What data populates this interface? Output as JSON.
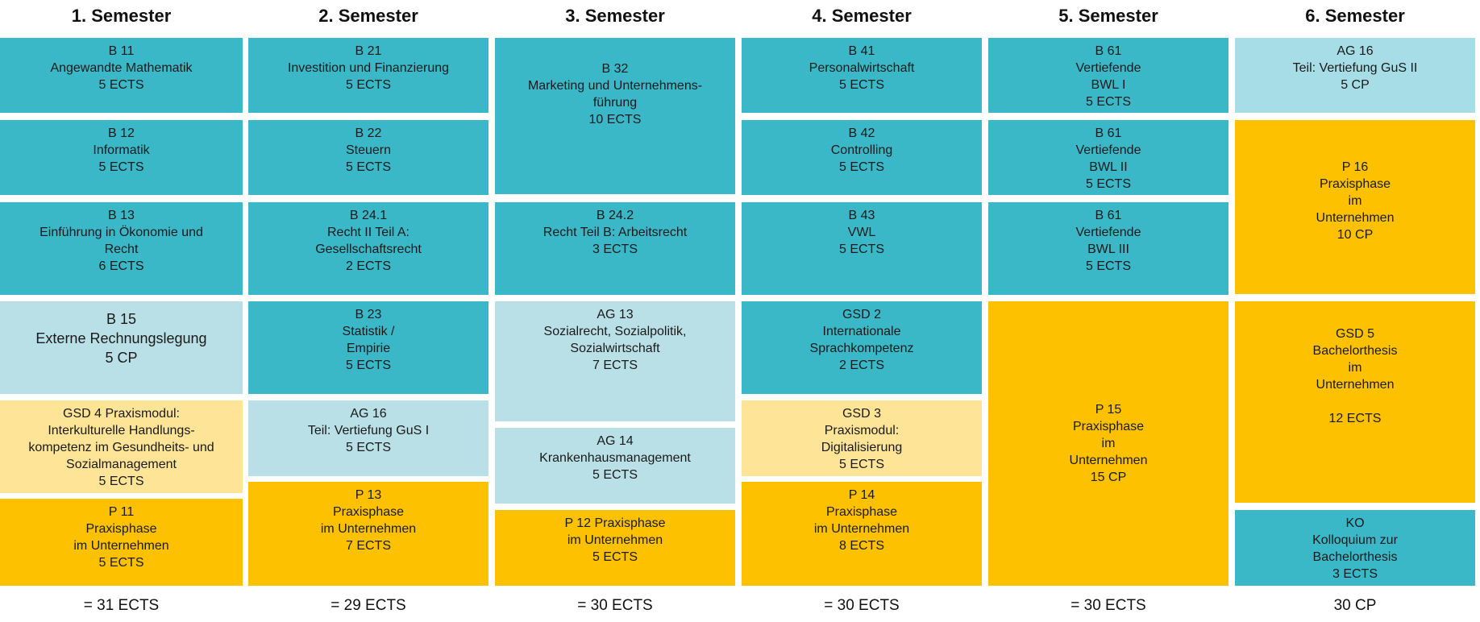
{
  "semesters": [
    {
      "title": "1. Semester",
      "total": "= 31 ECTS",
      "modules": [
        {
          "lines": [
            "B 11",
            "Angewandte Mathematik",
            "5 ECTS"
          ],
          "color": "#3bb8c8"
        },
        {
          "lines": [
            "B 12",
            "Informatik",
            "5 ECTS"
          ],
          "color": "#3bb8c8"
        },
        {
          "lines": [
            "B 13",
            "Einführung in Ökonomie und",
            "Recht",
            "6 ECTS"
          ],
          "color": "#3bb8c8"
        },
        {
          "lines": [
            "B 15",
            "Externe Rechnungslegung",
            "5 CP"
          ],
          "color": "#b9e0e6"
        },
        {
          "lines": [
            "GSD 4 Praxismodul:",
            "Interkulturelle Handlungs-",
            "kompetenz im Gesundheits- und",
            "Sozialmanagement",
            "5 ECTS"
          ],
          "color": "#fde497"
        },
        {
          "lines": [
            "P 11",
            "Praxisphase",
            "im Unternehmen",
            "5 ECTS"
          ],
          "color": "#fdc100"
        }
      ]
    },
    {
      "title": "2. Semester",
      "total": "= 29 ECTS",
      "modules": [
        {
          "lines": [
            "B 21",
            "Investition und Finanzierung",
            "5 ECTS"
          ],
          "color": "#3bb8c8"
        },
        {
          "lines": [
            "B 22",
            "Steuern",
            "5 ECTS"
          ],
          "color": "#3bb8c8"
        },
        {
          "lines": [
            "B 24.1",
            "Recht II Teil A:",
            "Gesellschaftsrecht",
            "2 ECTS"
          ],
          "color": "#3bb8c8"
        },
        {
          "lines": [
            "B 23",
            "Statistik /",
            "Empirie",
            "5 ECTS"
          ],
          "color": "#3bb8c8"
        },
        {
          "lines": [
            "AG 16",
            "Teil: Vertiefung GuS I",
            "5 ECTS"
          ],
          "color": "#b9e0e6"
        },
        {
          "lines": [
            "P 13",
            "Praxisphase",
            "im Unternehmen",
            "7 ECTS"
          ],
          "color": "#fdc100"
        }
      ]
    },
    {
      "title": "3. Semester",
      "total": "= 30 ECTS",
      "modules": [
        {
          "lines": [
            "B 32",
            "Marketing und Unternehmens-",
            "führung",
            "10 ECTS"
          ],
          "color": "#3bb8c8"
        },
        {
          "lines": [
            "B 24.2",
            "Recht Teil B: Arbeitsrecht",
            "3 ECTS"
          ],
          "color": "#3bb8c8"
        },
        {
          "lines": [
            "AG 13",
            "Sozialrecht, Sozialpolitik,",
            "Sozialwirtschaft",
            "7 ECTS"
          ],
          "color": "#b9e0e6"
        },
        {
          "lines": [
            "AG 14",
            "Krankenhausmanagement",
            "5 ECTS"
          ],
          "color": "#b9e0e6"
        },
        {
          "lines": [
            "P 12 Praxisphase",
            "im Unternehmen",
            "5 ECTS"
          ],
          "color": "#fdc100"
        }
      ]
    },
    {
      "title": "4. Semester",
      "total": "= 30 ECTS",
      "modules": [
        {
          "lines": [
            "B 41",
            "Personalwirtschaft",
            "5 ECTS"
          ],
          "color": "#3bb8c8"
        },
        {
          "lines": [
            "B 42",
            "Controlling",
            "5 ECTS"
          ],
          "color": "#3bb8c8"
        },
        {
          "lines": [
            "B 43",
            "VWL",
            "5 ECTS"
          ],
          "color": "#3bb8c8"
        },
        {
          "lines": [
            "GSD 2",
            "Internationale",
            "Sprachkompetenz",
            "2 ECTS"
          ],
          "color": "#3bb8c8"
        },
        {
          "lines": [
            "GSD 3",
            "Praxismodul:",
            "Digitalisierung",
            "5 ECTS"
          ],
          "color": "#fde497"
        },
        {
          "lines": [
            "P 14",
            "Praxisphase",
            "im Unternehmen",
            "8 ECTS"
          ],
          "color": "#fdc100"
        }
      ]
    },
    {
      "title": "5. Semester",
      "total": "= 30 ECTS",
      "modules": [
        {
          "lines": [
            "B 61",
            "Vertiefende",
            "BWL I",
            "5 ECTS"
          ],
          "color": "#3bb8c8"
        },
        {
          "lines": [
            "B 61",
            "Vertiefende",
            "BWL II",
            "5 ECTS"
          ],
          "color": "#3bb8c8"
        },
        {
          "lines": [
            "B 61",
            "Vertiefende",
            "BWL III",
            "5 ECTS"
          ],
          "color": "#3bb8c8"
        },
        {
          "lines": [
            "P 15",
            "Praxisphase",
            "im",
            "Unternehmen",
            "15 CP"
          ],
          "color": "#fdc100"
        }
      ]
    },
    {
      "title": "6. Semester",
      "total": "30 CP",
      "modules": [
        {
          "lines": [
            "AG 16",
            "Teil: Vertiefung GuS II",
            "5 CP"
          ],
          "color": "#a6dde7"
        },
        {
          "lines": [
            "P 16",
            "Praxisphase",
            "im",
            "Unternehmen",
            "10 CP"
          ],
          "color": "#fdc100"
        },
        {
          "lines": [
            "GSD 5",
            "Bachelorthesis",
            "im",
            "Unternehmen",
            "",
            "12 ECTS"
          ],
          "color": "#fdc100"
        },
        {
          "lines": [
            "KO",
            "Kolloquium zur",
            "Bachelorthesis",
            "3 ECTS"
          ],
          "color": "#3bb8c8"
        }
      ]
    }
  ]
}
